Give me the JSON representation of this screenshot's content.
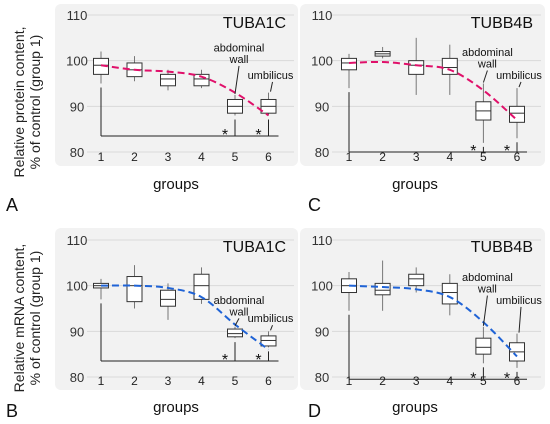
{
  "y_axis_label_line1": "Relative protein content,",
  "y_axis_label_line2": "% of control (group 1)",
  "y_axis_label_mrna_line1": "Relative mRNA content,",
  "y_axis_label_mrna_line2": "% of control (group 1)",
  "colors": {
    "protein_curve": "#e0106a",
    "mrna_curve": "#1f63d6",
    "box": "#333333",
    "grid": "#d9d9d9",
    "panel_bg": "#f2f2f2"
  },
  "chart_data": [
    {
      "panel_letter": "A",
      "type": "box",
      "title": "TUBA1C",
      "xlabel": "groups",
      "ylabel": "Relative protein content, % of control (group 1)",
      "yticks": [
        "80",
        "90",
        "100",
        "110"
      ],
      "ylim": [
        77,
        111
      ],
      "categories": [
        "1",
        "2",
        "3",
        "4",
        "5",
        "6"
      ],
      "boxes": [
        {
          "group": "1",
          "whisker_low": 95,
          "q1": 97,
          "median": 99,
          "q3": 100.5,
          "whisker_high": 102
        },
        {
          "group": "2",
          "whisker_low": 95.5,
          "q1": 96.5,
          "median": 98,
          "q3": 99.5,
          "whisker_high": 101
        },
        {
          "group": "3",
          "whisker_low": 93.5,
          "q1": 94.5,
          "median": 96,
          "q3": 97,
          "whisker_high": 98
        },
        {
          "group": "4",
          "whisker_low": 94,
          "q1": 94.5,
          "median": 96,
          "q3": 97,
          "whisker_high": 98
        },
        {
          "group": "5",
          "whisker_low": 88,
          "q1": 88.5,
          "median": 90,
          "q3": 91.5,
          "whisker_high": 92.5
        },
        {
          "group": "6",
          "whisker_low": 88,
          "q1": 88.5,
          "median": 90,
          "q3": 91.5,
          "whisker_high": 93
        }
      ],
      "trend": {
        "style": "dashed",
        "color": "#e0106a",
        "points": [
          [
            1,
            99
          ],
          [
            2,
            98
          ],
          [
            3,
            97.6
          ],
          [
            4,
            96.5
          ],
          [
            5,
            93
          ],
          [
            6,
            88
          ]
        ]
      },
      "annotations": [
        {
          "text": "abdominal",
          "group": 5,
          "y": 102
        },
        {
          "text": "wall",
          "group": 5,
          "y": 99.5
        },
        {
          "text": "umbilicus",
          "group": 6,
          "y": 96
        }
      ],
      "significance": {
        "baseline_y": 83.5,
        "stars": [
          "*",
          "*"
        ]
      }
    },
    {
      "panel_letter": "C",
      "type": "box",
      "title": "TUBB4B",
      "xlabel": "groups",
      "ylabel": "",
      "yticks": [
        "80",
        "90",
        "100",
        "110"
      ],
      "ylim": [
        77,
        111
      ],
      "categories": [
        "1",
        "2",
        "3",
        "4",
        "5",
        "6"
      ],
      "boxes": [
        {
          "group": "1",
          "whisker_low": 94,
          "q1": 98,
          "median": 99.5,
          "q3": 100.5,
          "whisker_high": 101.5
        },
        {
          "group": "2",
          "whisker_low": 100.5,
          "q1": 101,
          "median": 101.5,
          "q3": 102,
          "whisker_high": 103
        },
        {
          "group": "3",
          "whisker_low": 92.5,
          "q1": 97,
          "median": 99,
          "q3": 100,
          "whisker_high": 105
        },
        {
          "group": "4",
          "whisker_low": 92.5,
          "q1": 97,
          "median": 98.5,
          "q3": 100.5,
          "whisker_high": 103.5
        },
        {
          "group": "5",
          "whisker_low": 82,
          "q1": 87,
          "median": 89,
          "q3": 91,
          "whisker_high": 95
        },
        {
          "group": "6",
          "whisker_low": 83,
          "q1": 86.5,
          "median": 88.5,
          "q3": 90,
          "whisker_high": 94
        }
      ],
      "trend": {
        "style": "dashed",
        "color": "#e0106a",
        "points": [
          [
            1,
            99.5
          ],
          [
            2,
            99.7
          ],
          [
            3,
            99
          ],
          [
            4,
            98
          ],
          [
            5,
            93.5
          ],
          [
            6,
            87
          ]
        ]
      },
      "annotations": [
        {
          "text": "abdominal",
          "group": 5,
          "y": 101
        },
        {
          "text": "wall",
          "group": 5,
          "y": 98.5
        },
        {
          "text": "umbilicus",
          "group": 6,
          "y": 96
        }
      ],
      "significance": {
        "baseline_y": 80,
        "stars": [
          "*",
          "*"
        ]
      }
    },
    {
      "panel_letter": "B",
      "type": "box",
      "title": "TUBA1C",
      "xlabel": "groups",
      "ylabel": "Relative mRNA content, % of control (group 1)",
      "yticks": [
        "80",
        "90",
        "100",
        "110"
      ],
      "ylim": [
        77,
        111
      ],
      "categories": [
        "1",
        "2",
        "3",
        "4",
        "5",
        "6"
      ],
      "boxes": [
        {
          "group": "1",
          "whisker_low": 97,
          "q1": 99.5,
          "median": 100,
          "q3": 100.5,
          "whisker_high": 101.5
        },
        {
          "group": "2",
          "whisker_low": 95,
          "q1": 96.5,
          "median": 100,
          "q3": 102,
          "whisker_high": 104.5
        },
        {
          "group": "3",
          "whisker_low": 92.5,
          "q1": 95.5,
          "median": 97,
          "q3": 99,
          "whisker_high": 100.5
        },
        {
          "group": "4",
          "whisker_low": 96,
          "q1": 97,
          "median": 100,
          "q3": 102.5,
          "whisker_high": 104
        },
        {
          "group": "5",
          "whisker_low": 88.5,
          "q1": 88.8,
          "median": 89.5,
          "q3": 90.5,
          "whisker_high": 91
        },
        {
          "group": "6",
          "whisker_low": 86.5,
          "q1": 86.8,
          "median": 88,
          "q3": 89,
          "whisker_high": 90
        }
      ],
      "trend": {
        "style": "dashed",
        "color": "#1f63d6",
        "points": [
          [
            1,
            100
          ],
          [
            2,
            100
          ],
          [
            3,
            99.5
          ],
          [
            4,
            97.5
          ],
          [
            5,
            91.5
          ],
          [
            6,
            86
          ]
        ]
      },
      "annotations": [
        {
          "text": "abdominal",
          "group": 5,
          "y": 96
        },
        {
          "text": "wall",
          "group": 5,
          "y": 93.5
        },
        {
          "text": "umbilicus",
          "group": 6,
          "y": 92
        }
      ],
      "significance": {
        "baseline_y": 83.5,
        "stars": [
          "*",
          "*"
        ]
      }
    },
    {
      "panel_letter": "D",
      "type": "box",
      "title": "TUBB4B",
      "xlabel": "groups",
      "ylabel": "",
      "yticks": [
        "80",
        "90",
        "100",
        "110"
      ],
      "ylim": [
        77,
        111
      ],
      "categories": [
        "1",
        "2",
        "3",
        "4",
        "5",
        "6"
      ],
      "boxes": [
        {
          "group": "1",
          "whisker_low": 94.5,
          "q1": 98.5,
          "median": 100,
          "q3": 101.5,
          "whisker_high": 103
        },
        {
          "group": "2",
          "whisker_low": 94.5,
          "q1": 98,
          "median": 99,
          "q3": 100.5,
          "whisker_high": 105.5
        },
        {
          "group": "3",
          "whisker_low": 98.5,
          "q1": 100,
          "median": 101.5,
          "q3": 102.5,
          "whisker_high": 104
        },
        {
          "group": "4",
          "whisker_low": 93.5,
          "q1": 96,
          "median": 98.5,
          "q3": 100.5,
          "whisker_high": 102.5
        },
        {
          "group": "5",
          "whisker_low": 83,
          "q1": 85,
          "median": 86.5,
          "q3": 88.5,
          "whisker_high": 91
        },
        {
          "group": "6",
          "whisker_low": 82,
          "q1": 83.5,
          "median": 85.5,
          "q3": 87.5,
          "whisker_high": 89.5
        }
      ],
      "trend": {
        "style": "dashed",
        "color": "#1f63d6",
        "points": [
          [
            1,
            100
          ],
          [
            2,
            99.7
          ],
          [
            3,
            99.2
          ],
          [
            4,
            97.5
          ],
          [
            5,
            92
          ],
          [
            6,
            84.5
          ]
        ]
      },
      "annotations": [
        {
          "text": "abdominal",
          "group": 5,
          "y": 101
        },
        {
          "text": "wall",
          "group": 5,
          "y": 98.5
        },
        {
          "text": "umbilicus",
          "group": 6,
          "y": 96
        }
      ],
      "significance": {
        "baseline_y": 79.5,
        "stars": [
          "*",
          "*"
        ]
      }
    }
  ]
}
